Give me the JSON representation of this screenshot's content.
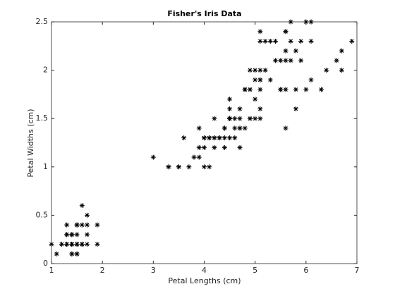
{
  "chart_data": {
    "type": "scatter",
    "title": "Fisher's Iris Data",
    "xlabel": "Petal Lengths (cm)",
    "ylabel": "Petal Widths (cm)",
    "marker": "asterisk",
    "color": "#000000",
    "box": true,
    "x": [
      1.4,
      1.4,
      1.3,
      1.5,
      1.4,
      1.7,
      1.4,
      1.5,
      1.4,
      1.5,
      1.5,
      1.6,
      1.4,
      1.1,
      1.2,
      1.5,
      1.3,
      1.4,
      1.7,
      1.5,
      1.7,
      1.5,
      1.0,
      1.7,
      1.9,
      1.6,
      1.6,
      1.5,
      1.4,
      1.6,
      1.6,
      1.5,
      1.5,
      1.4,
      1.5,
      1.2,
      1.3,
      1.4,
      1.3,
      1.5,
      1.3,
      1.3,
      1.3,
      1.6,
      1.9,
      1.4,
      1.6,
      1.4,
      1.5,
      1.4,
      4.7,
      4.5,
      4.9,
      4.0,
      4.6,
      4.5,
      4.7,
      3.3,
      4.6,
      3.9,
      3.5,
      4.2,
      4.0,
      4.7,
      3.6,
      4.4,
      4.5,
      4.1,
      4.5,
      3.9,
      4.8,
      4.0,
      4.9,
      4.7,
      4.3,
      4.4,
      4.8,
      5.0,
      4.5,
      3.5,
      3.8,
      3.7,
      3.9,
      5.1,
      4.5,
      4.5,
      4.7,
      4.4,
      4.1,
      4.0,
      4.4,
      4.6,
      4.0,
      3.3,
      4.2,
      4.2,
      4.2,
      4.3,
      3.0,
      4.1,
      6.0,
      5.1,
      5.9,
      5.6,
      5.8,
      6.6,
      4.5,
      6.3,
      5.8,
      6.1,
      5.1,
      5.3,
      5.5,
      5.0,
      5.1,
      5.3,
      5.5,
      6.7,
      6.9,
      5.0,
      5.7,
      4.9,
      6.7,
      4.9,
      5.7,
      6.0,
      4.8,
      4.9,
      5.6,
      5.8,
      6.1,
      6.4,
      5.6,
      5.1,
      5.6,
      6.1,
      5.6,
      5.5,
      4.8,
      5.4,
      5.6,
      5.1,
      5.1,
      5.9,
      5.7,
      5.2,
      5.0,
      5.2,
      5.4,
      5.1
    ],
    "y": [
      0.2,
      0.2,
      0.2,
      0.2,
      0.2,
      0.4,
      0.3,
      0.2,
      0.2,
      0.1,
      0.2,
      0.2,
      0.1,
      0.1,
      0.2,
      0.4,
      0.4,
      0.3,
      0.3,
      0.3,
      0.2,
      0.4,
      0.2,
      0.5,
      0.2,
      0.2,
      0.4,
      0.2,
      0.2,
      0.2,
      0.2,
      0.4,
      0.1,
      0.2,
      0.2,
      0.2,
      0.2,
      0.1,
      0.2,
      0.2,
      0.3,
      0.3,
      0.2,
      0.6,
      0.4,
      0.3,
      0.2,
      0.2,
      0.2,
      0.2,
      1.4,
      1.5,
      1.5,
      1.3,
      1.5,
      1.3,
      1.6,
      1.0,
      1.3,
      1.4,
      1.0,
      1.5,
      1.0,
      1.4,
      1.3,
      1.4,
      1.5,
      1.0,
      1.5,
      1.1,
      1.8,
      1.3,
      1.5,
      1.2,
      1.3,
      1.4,
      1.4,
      1.7,
      1.5,
      1.0,
      1.1,
      1.0,
      1.2,
      1.6,
      1.5,
      1.6,
      1.5,
      1.3,
      1.3,
      1.3,
      1.2,
      1.4,
      1.2,
      1.0,
      1.3,
      1.2,
      1.3,
      1.3,
      1.1,
      1.3,
      2.5,
      1.9,
      2.1,
      1.8,
      2.2,
      2.1,
      1.7,
      1.8,
      1.8,
      2.5,
      2.0,
      1.9,
      2.1,
      2.0,
      2.4,
      2.3,
      1.8,
      2.2,
      2.3,
      1.5,
      2.3,
      2.0,
      2.0,
      1.8,
      2.1,
      1.8,
      1.8,
      1.8,
      2.1,
      1.6,
      1.9,
      2.0,
      2.2,
      1.5,
      1.4,
      2.3,
      2.4,
      1.8,
      1.8,
      2.1,
      2.4,
      2.3,
      1.9,
      2.3,
      2.5,
      2.3,
      1.9,
      2.0,
      2.3,
      1.8
    ],
    "xlim": [
      1,
      7
    ],
    "ylim": [
      0,
      2.5
    ],
    "xticks": [
      1,
      2,
      3,
      4,
      5,
      6,
      7
    ],
    "yticks": [
      0,
      0.5,
      1,
      1.5,
      2,
      2.5
    ]
  }
}
